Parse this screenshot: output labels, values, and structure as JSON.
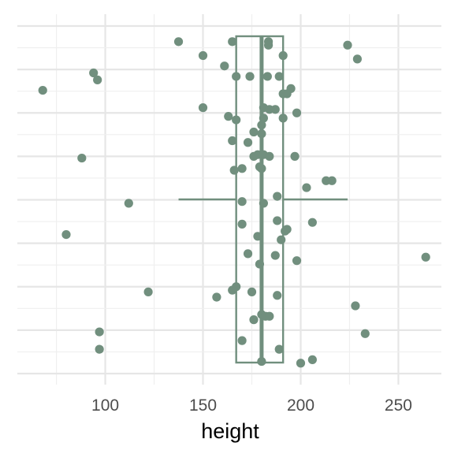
{
  "chart_data": {
    "type": "boxplot-jitter",
    "xlabel": "height",
    "ylabel": "",
    "xlim": [
      55,
      272
    ],
    "x_ticks": [
      100,
      150,
      200,
      250
    ],
    "x_tick_labels": [
      "100",
      "150",
      "200",
      "250"
    ],
    "grid": true,
    "color": "#718f7e",
    "box": {
      "whisker_low": 137.5,
      "q1": 167,
      "median": 180,
      "q3": 191,
      "whisker_high": 224
    },
    "points": [
      {
        "x": 137.5,
        "y": 0.955
      },
      {
        "x": 165,
        "y": 0.955
      },
      {
        "x": 183.5,
        "y": 0.955
      },
      {
        "x": 183.5,
        "y": 0.945
      },
      {
        "x": 224,
        "y": 0.945
      },
      {
        "x": 150,
        "y": 0.915
      },
      {
        "x": 191,
        "y": 0.915
      },
      {
        "x": 229,
        "y": 0.905
      },
      {
        "x": 161,
        "y": 0.885
      },
      {
        "x": 94,
        "y": 0.865
      },
      {
        "x": 96,
        "y": 0.845
      },
      {
        "x": 167,
        "y": 0.855
      },
      {
        "x": 174,
        "y": 0.855
      },
      {
        "x": 183,
        "y": 0.855
      },
      {
        "x": 189,
        "y": 0.855
      },
      {
        "x": 68,
        "y": 0.815
      },
      {
        "x": 195,
        "y": 0.82
      },
      {
        "x": 191,
        "y": 0.805
      },
      {
        "x": 193,
        "y": 0.805
      },
      {
        "x": 150,
        "y": 0.765
      },
      {
        "x": 181,
        "y": 0.765
      },
      {
        "x": 184,
        "y": 0.76
      },
      {
        "x": 187,
        "y": 0.76
      },
      {
        "x": 198,
        "y": 0.75
      },
      {
        "x": 163,
        "y": 0.74
      },
      {
        "x": 167,
        "y": 0.73
      },
      {
        "x": 181,
        "y": 0.735
      },
      {
        "x": 191,
        "y": 0.735
      },
      {
        "x": 180,
        "y": 0.715
      },
      {
        "x": 176,
        "y": 0.695
      },
      {
        "x": 180,
        "y": 0.69
      },
      {
        "x": 165,
        "y": 0.67
      },
      {
        "x": 173,
        "y": 0.665
      },
      {
        "x": 178,
        "y": 0.63
      },
      {
        "x": 181,
        "y": 0.63
      },
      {
        "x": 176,
        "y": 0.625
      },
      {
        "x": 184,
        "y": 0.625
      },
      {
        "x": 197,
        "y": 0.625
      },
      {
        "x": 88,
        "y": 0.62
      },
      {
        "x": 179,
        "y": 0.595
      },
      {
        "x": 180,
        "y": 0.59
      },
      {
        "x": 170,
        "y": 0.59
      },
      {
        "x": 166,
        "y": 0.585
      },
      {
        "x": 213,
        "y": 0.555
      },
      {
        "x": 216,
        "y": 0.555
      },
      {
        "x": 203,
        "y": 0.535
      },
      {
        "x": 188,
        "y": 0.51
      },
      {
        "x": 112,
        "y": 0.49
      },
      {
        "x": 170,
        "y": 0.495
      },
      {
        "x": 181,
        "y": 0.49
      },
      {
        "x": 188,
        "y": 0.44
      },
      {
        "x": 206,
        "y": 0.435
      },
      {
        "x": 170,
        "y": 0.43
      },
      {
        "x": 80,
        "y": 0.4
      },
      {
        "x": 193,
        "y": 0.415
      },
      {
        "x": 192,
        "y": 0.41
      },
      {
        "x": 178,
        "y": 0.395
      },
      {
        "x": 190,
        "y": 0.385
      },
      {
        "x": 173,
        "y": 0.345
      },
      {
        "x": 187,
        "y": 0.34
      },
      {
        "x": 264,
        "y": 0.335
      },
      {
        "x": 198,
        "y": 0.325
      },
      {
        "x": 179,
        "y": 0.315
      },
      {
        "x": 167,
        "y": 0.25
      },
      {
        "x": 165,
        "y": 0.24
      },
      {
        "x": 122,
        "y": 0.235
      },
      {
        "x": 175,
        "y": 0.235
      },
      {
        "x": 188,
        "y": 0.225
      },
      {
        "x": 157,
        "y": 0.22
      },
      {
        "x": 228,
        "y": 0.195
      },
      {
        "x": 180,
        "y": 0.17
      },
      {
        "x": 182,
        "y": 0.165
      },
      {
        "x": 184,
        "y": 0.165
      },
      {
        "x": 176,
        "y": 0.155
      },
      {
        "x": 97,
        "y": 0.12
      },
      {
        "x": 233,
        "y": 0.115
      },
      {
        "x": 170,
        "y": 0.095
      },
      {
        "x": 97,
        "y": 0.07
      },
      {
        "x": 189,
        "y": 0.07
      },
      {
        "x": 180,
        "y": 0.035
      },
      {
        "x": 200,
        "y": 0.03
      },
      {
        "x": 206,
        "y": 0.04
      }
    ]
  }
}
